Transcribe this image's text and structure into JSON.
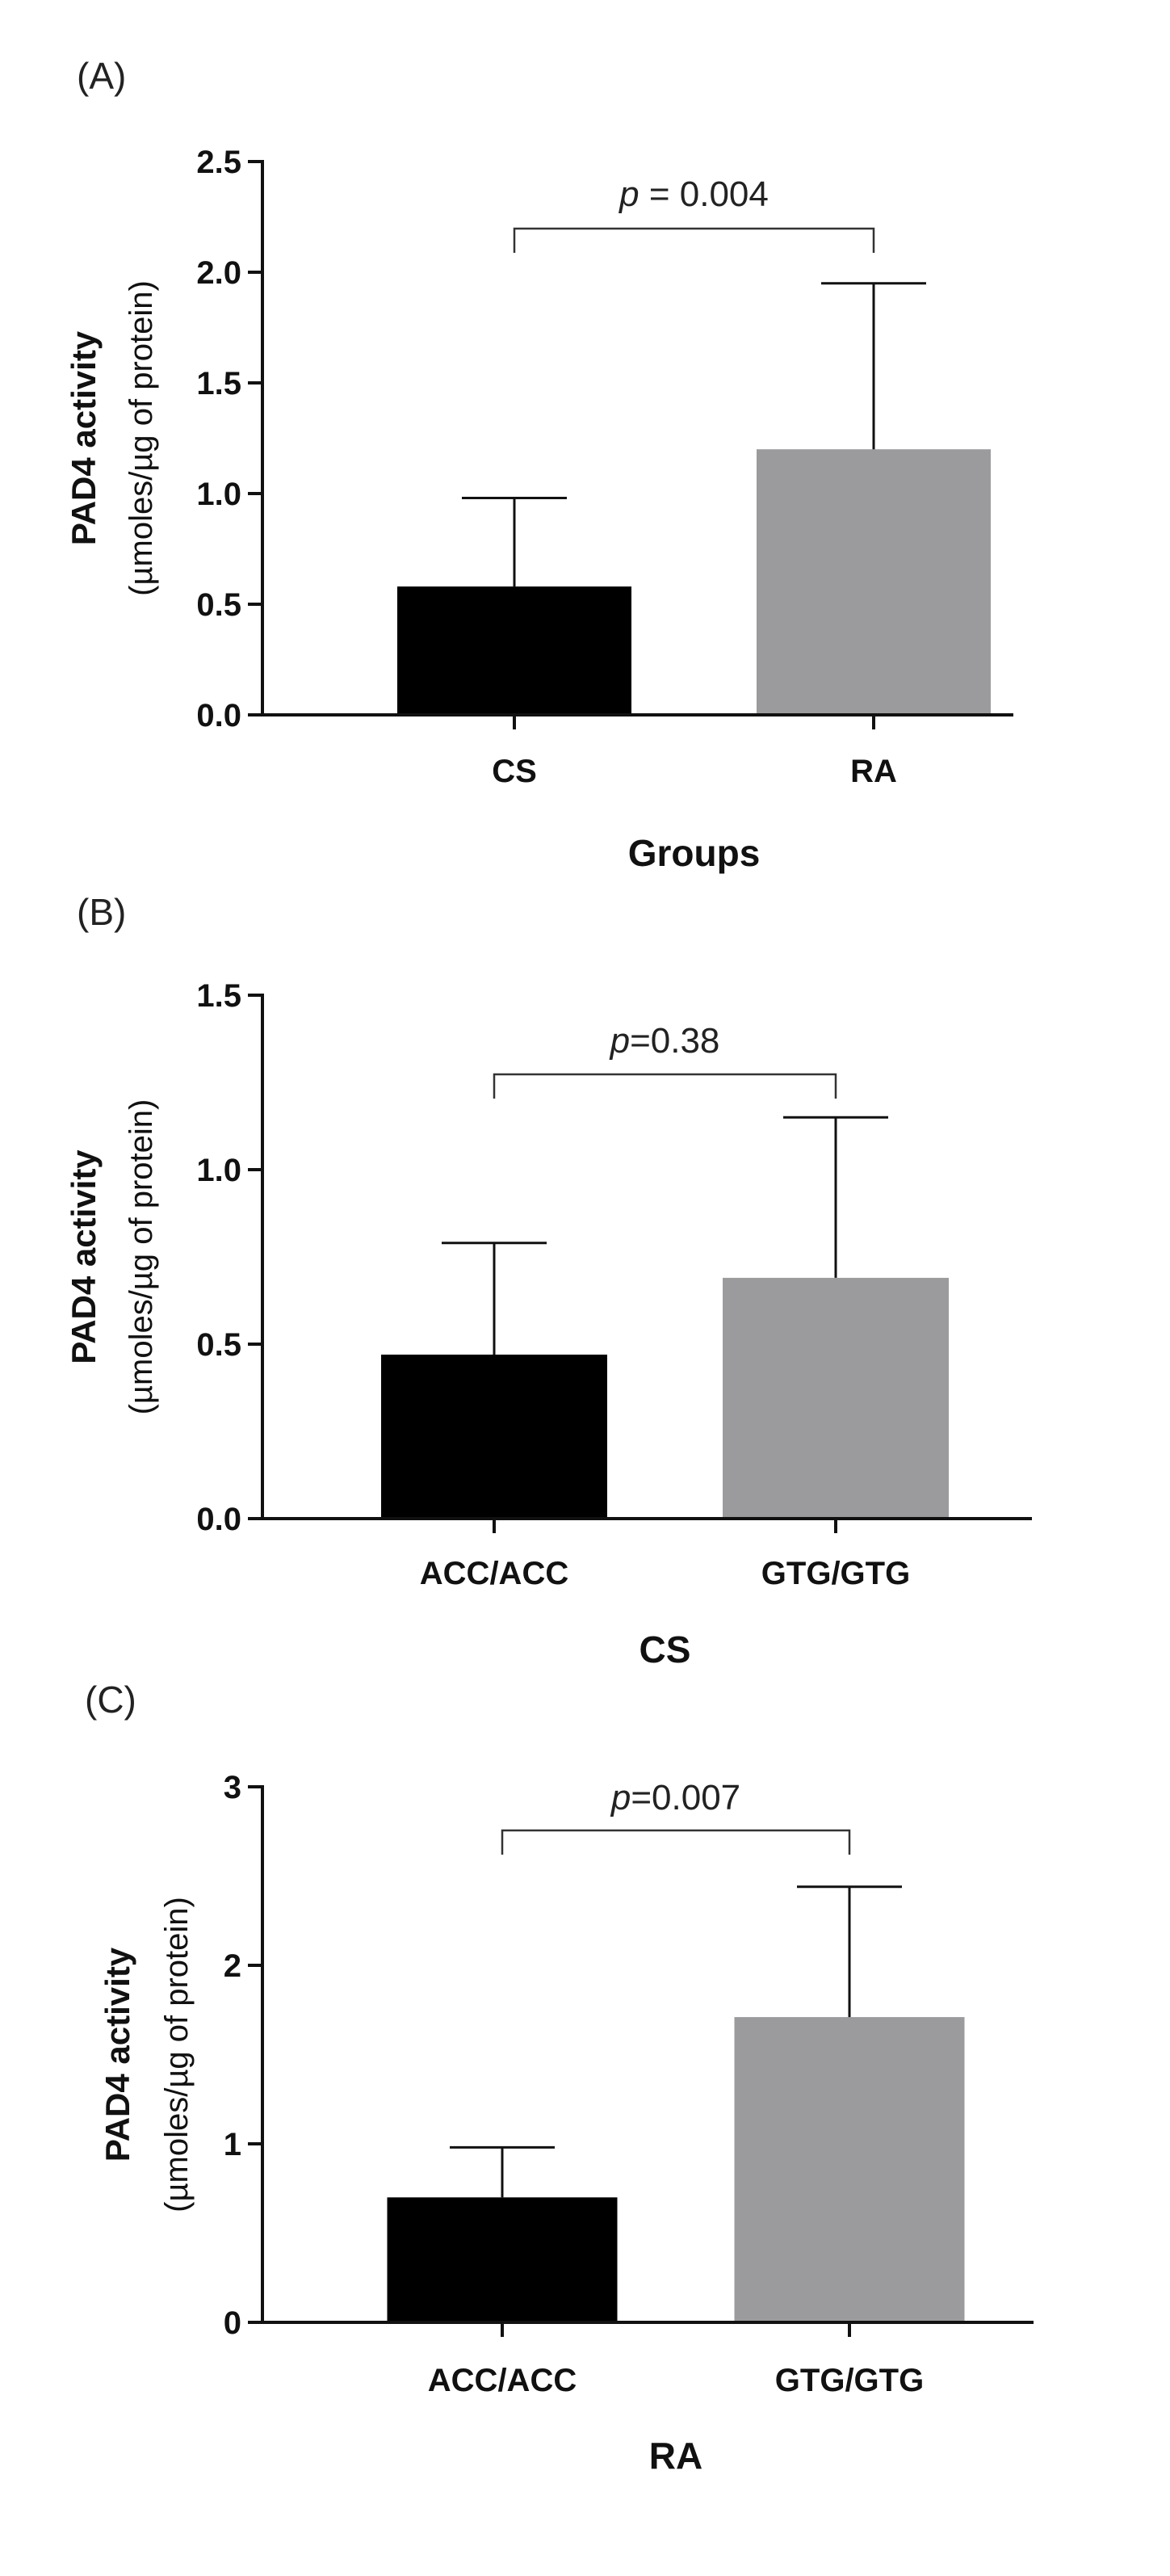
{
  "chart_data": [
    {
      "type": "bar",
      "panel_label": "(A)",
      "categories": [
        "CS",
        "RA"
      ],
      "values": [
        0.58,
        1.2
      ],
      "errors": [
        0.4,
        0.75
      ],
      "colors": [
        "#000000",
        "#9b9b9d"
      ],
      "xlabel": "Groups",
      "ylabel_line1": "PAD4 activity",
      "ylabel_line2": "(µmoles/µg of protein)",
      "ylim": [
        0,
        2.5
      ],
      "yticks": [
        0.0,
        0.5,
        1.0,
        1.5,
        2.0,
        2.5
      ],
      "ytick_labels": [
        "0.0",
        "0.5",
        "1.0",
        "1.5",
        "2.0",
        "2.5"
      ],
      "annotation": {
        "p_italic": "p",
        "text": " = 0.004"
      }
    },
    {
      "type": "bar",
      "panel_label": "(B)",
      "categories": [
        "ACC/ACC",
        "GTG/GTG"
      ],
      "values": [
        0.47,
        0.69
      ],
      "errors": [
        0.32,
        0.46
      ],
      "colors": [
        "#000000",
        "#9b9b9d"
      ],
      "xlabel": "CS",
      "ylabel_line1": "PAD4 activity",
      "ylabel_line2": "(µmoles/µg of protein)",
      "ylim": [
        0,
        1.5
      ],
      "yticks": [
        0.0,
        0.5,
        1.0,
        1.5
      ],
      "ytick_labels": [
        "0.0",
        "0.5",
        "1.0",
        "1.5"
      ],
      "annotation": {
        "p_italic": "p",
        "text": "=0.38"
      }
    },
    {
      "type": "bar",
      "panel_label": "(C)",
      "categories": [
        "ACC/ACC",
        "GTG/GTG"
      ],
      "values": [
        0.7,
        1.71
      ],
      "errors": [
        0.28,
        0.73
      ],
      "colors": [
        "#000000",
        "#9b9b9d"
      ],
      "xlabel": "RA",
      "ylabel_line1": "PAD4 activity",
      "ylabel_line2": "(µmoles/µg of protein)",
      "ylim": [
        0,
        3
      ],
      "yticks": [
        0,
        1,
        2,
        3
      ],
      "ytick_labels": [
        "0",
        "1",
        "2",
        "3"
      ],
      "annotation": {
        "p_italic": "p",
        "text": "=0.007"
      }
    }
  ]
}
